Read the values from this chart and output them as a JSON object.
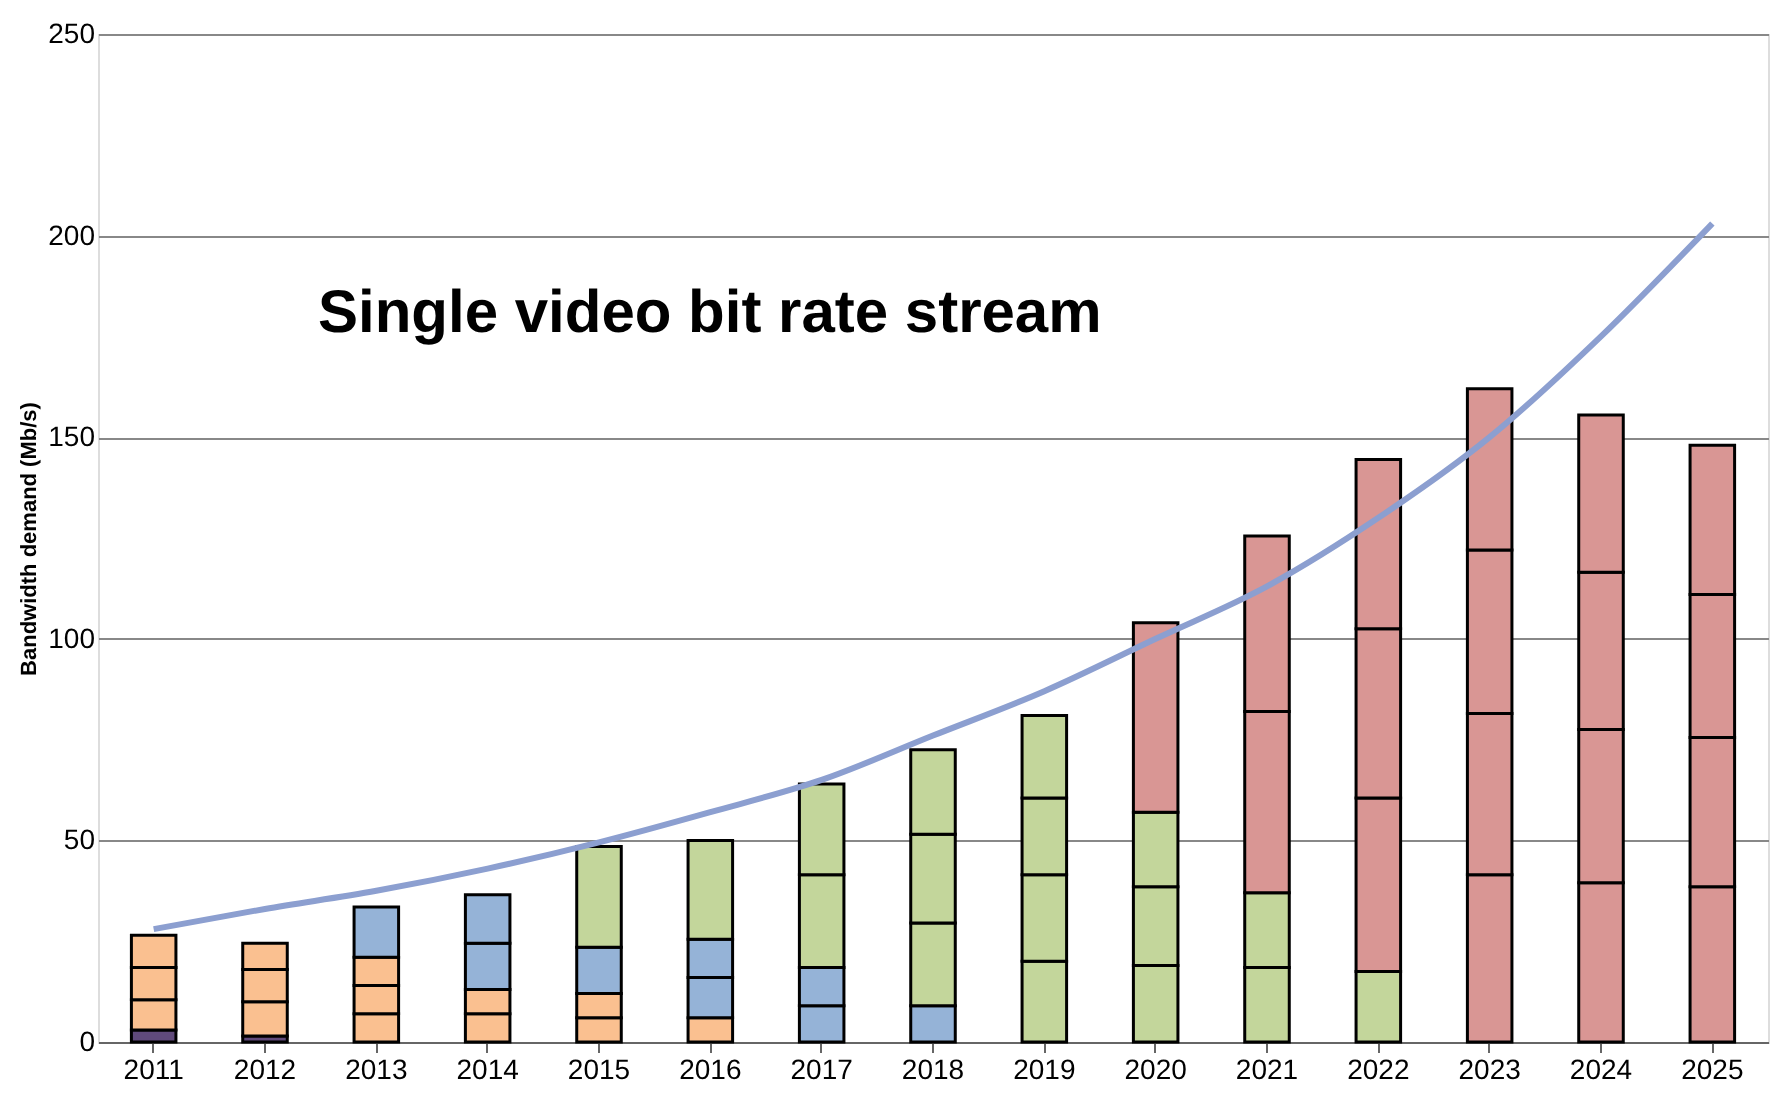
{
  "chart_data": {
    "type": "bar",
    "stacked": true,
    "ylabel": "Bandwidth demand (Mb/s)",
    "annotations": [
      "Single video bit rate stream"
    ],
    "categories": [
      "2011",
      "2012",
      "2013",
      "2014",
      "2015",
      "2016",
      "2017",
      "2018",
      "2019",
      "2020",
      "2021",
      "2022",
      "2023",
      "2024",
      "2025"
    ],
    "series": [
      {
        "values": [
          3,
          1.5,
          7,
          7,
          6,
          6,
          9,
          9,
          20,
          19,
          18.5,
          17.5,
          41.5,
          39.5,
          38.5
        ],
        "colors": [
          "#604a7b",
          "#604a7b",
          "#fac090",
          "#fac090",
          "#fac090",
          "#fac090",
          "#95b3d7",
          "#95b3d7",
          "#c3d69b",
          "#c3d69b",
          "#c3d69b",
          "#c3d69b",
          "#d99694",
          "#d99694",
          "#d99694"
        ]
      },
      {
        "values": [
          7.5,
          8.5,
          7,
          6,
          6,
          10,
          9.5,
          20.5,
          21.5,
          19.5,
          18.5,
          43,
          40,
          38,
          37
        ],
        "colors": [
          "#fac090",
          "#fac090",
          "#fac090",
          "#fac090",
          "#fac090",
          "#95b3d7",
          "#95b3d7",
          "#c3d69b",
          "#c3d69b",
          "#c3d69b",
          "#c3d69b",
          "#d99694",
          "#d99694",
          "#d99694",
          "#d99694"
        ]
      },
      {
        "values": [
          8,
          8,
          7,
          11.5,
          11.5,
          9.5,
          23,
          22,
          19,
          18.5,
          45,
          42,
          40.5,
          39,
          35.5
        ],
        "colors": [
          "#fac090",
          "#fac090",
          "#fac090",
          "#95b3d7",
          "#95b3d7",
          "#95b3d7",
          "#c3d69b",
          "#c3d69b",
          "#c3d69b",
          "#c3d69b",
          "#d99694",
          "#d99694",
          "#d99694",
          "#d99694",
          "#d99694"
        ]
      },
      {
        "values": [
          8,
          6.5,
          12.5,
          12,
          25,
          24.5,
          22.5,
          21,
          20.5,
          47,
          43.5,
          42,
          40,
          39,
          37
        ],
        "colors": [
          "#fac090",
          "#fac090",
          "#95b3d7",
          "#95b3d7",
          "#c3d69b",
          "#c3d69b",
          "#c3d69b",
          "#c3d69b",
          "#c3d69b",
          "#d99694",
          "#d99694",
          "#d99694",
          "#d99694",
          "#d99694",
          "#d99694"
        ]
      },
      {
        "type": "line",
        "color": "#8c9fd0",
        "values": [
          28,
          33,
          37.5,
          43,
          49.5,
          57,
          65,
          76,
          87,
          100,
          113,
          130,
          150,
          175,
          203
        ]
      }
    ],
    "ylim": [
      0,
      250
    ],
    "yticks": [
      0,
      50,
      100,
      150,
      200,
      250
    ],
    "grid": "y"
  }
}
